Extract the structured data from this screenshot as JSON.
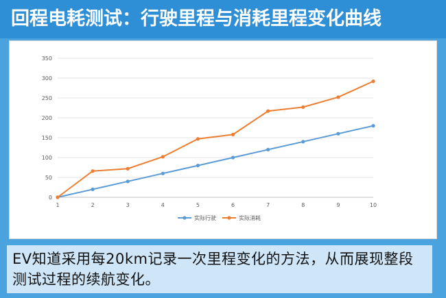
{
  "header": {
    "title": "回程电耗测试：行驶里程与消耗里程变化曲线"
  },
  "caption": {
    "text": "EV知道采用每20km记录一次里程变化的方法，从而展现整段测试过程的续航变化。"
  },
  "colors": {
    "header_bg": "#2e8fd6",
    "series_blue": "#5b9bd5",
    "series_orange": "#ed7d31"
  },
  "chart_data": {
    "type": "line",
    "title": "",
    "xlabel": "",
    "ylabel": "",
    "x": [
      1,
      2,
      3,
      4,
      5,
      6,
      7,
      8,
      9,
      10
    ],
    "ylim": [
      0,
      350
    ],
    "yticks": [
      0,
      50,
      100,
      150,
      200,
      250,
      300,
      350
    ],
    "grid": true,
    "legend": "bottom",
    "series": [
      {
        "name": "实际行驶",
        "color": "#5b9bd5",
        "values": [
          0,
          20,
          40,
          60,
          80,
          100,
          120,
          140,
          160,
          180
        ]
      },
      {
        "name": "实际消耗",
        "color": "#ed7d31",
        "values": [
          0,
          66,
          72,
          102,
          147,
          158,
          217,
          227,
          252,
          292
        ]
      }
    ]
  }
}
